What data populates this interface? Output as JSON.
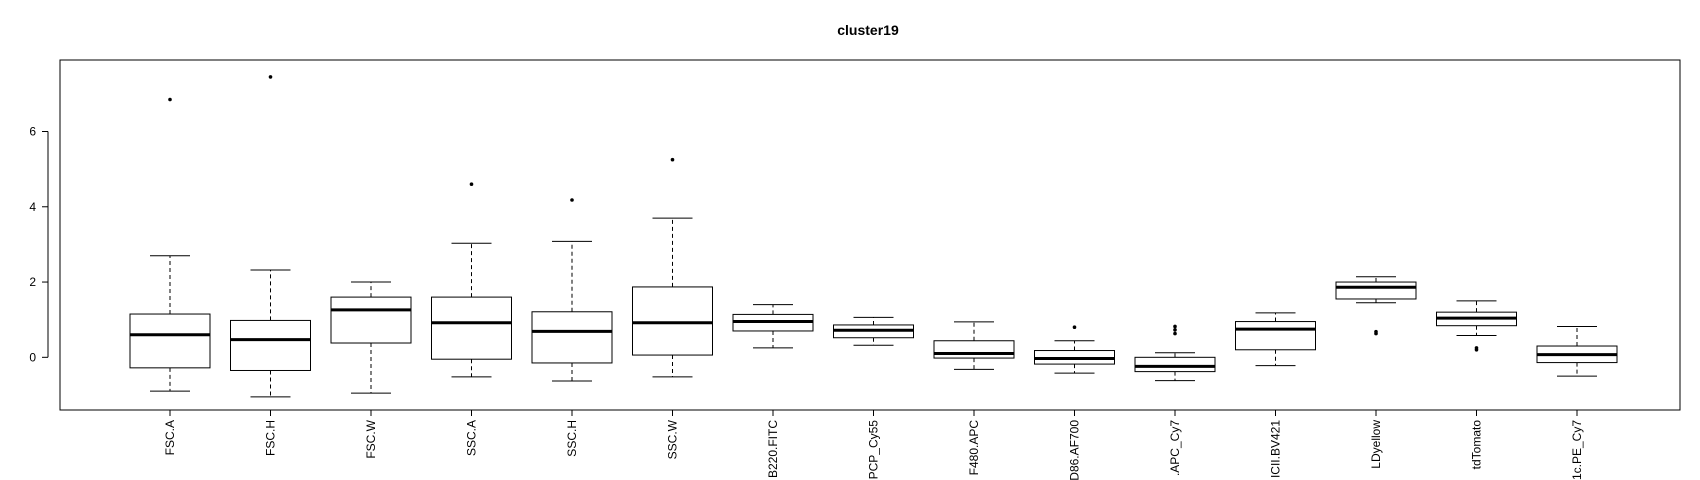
{
  "chart_data": {
    "type": "box",
    "title": "cluster19",
    "xlabel": "",
    "ylabel": "",
    "ylim": [
      -1.4,
      7.9
    ],
    "yticks": [
      0,
      2,
      4,
      6
    ],
    "categories": [
      "FSC.A",
      "FSC.H",
      "FSC.W",
      "SSC.A",
      "SSC.H",
      "SSC.W",
      "B220.FITC",
      "PCP_Cy55",
      "F480.APC",
      "D86.AF700",
      ".APC_Cy7",
      "ICII.BV421",
      "LDyellow",
      "tdTomato",
      "1c.PE_Cy7"
    ],
    "boxes": [
      {
        "label": "FSC.A",
        "whisker_low": -0.9,
        "q1": -0.28,
        "median": 0.6,
        "q3": 1.15,
        "whisker_high": 2.7,
        "outliers": [
          6.85
        ]
      },
      {
        "label": "FSC.H",
        "whisker_low": -1.05,
        "q1": -0.35,
        "median": 0.47,
        "q3": 0.98,
        "whisker_high": 2.32,
        "outliers": [
          7.45
        ]
      },
      {
        "label": "FSC.W",
        "whisker_low": -0.95,
        "q1": 0.38,
        "median": 1.26,
        "q3": 1.6,
        "whisker_high": 2.0,
        "outliers": []
      },
      {
        "label": "SSC.A",
        "whisker_low": -0.52,
        "q1": -0.05,
        "median": 0.92,
        "q3": 1.6,
        "whisker_high": 3.03,
        "outliers": [
          4.6
        ]
      },
      {
        "label": "SSC.H",
        "whisker_low": -0.63,
        "q1": -0.15,
        "median": 0.69,
        "q3": 1.21,
        "whisker_high": 3.08,
        "outliers": [
          4.18
        ]
      },
      {
        "label": "SSC.W",
        "whisker_low": -0.52,
        "q1": 0.06,
        "median": 0.92,
        "q3": 1.87,
        "whisker_high": 3.7,
        "outliers": [
          5.25
        ]
      },
      {
        "label": "B220.FITC",
        "whisker_low": 0.25,
        "q1": 0.7,
        "median": 0.95,
        "q3": 1.14,
        "whisker_high": 1.4,
        "outliers": []
      },
      {
        "label": "PCP_Cy55",
        "whisker_low": 0.32,
        "q1": 0.52,
        "median": 0.72,
        "q3": 0.86,
        "whisker_high": 1.06,
        "outliers": []
      },
      {
        "label": "F480.APC",
        "whisker_low": -0.32,
        "q1": -0.02,
        "median": 0.1,
        "q3": 0.44,
        "whisker_high": 0.94,
        "outliers": []
      },
      {
        "label": "D86.AF700",
        "whisker_low": -0.42,
        "q1": -0.18,
        "median": -0.03,
        "q3": 0.18,
        "whisker_high": 0.44,
        "outliers": [
          0.8
        ]
      },
      {
        "label": ".APC_Cy7",
        "whisker_low": -0.62,
        "q1": -0.38,
        "median": -0.24,
        "q3": 0.0,
        "whisker_high": 0.12,
        "outliers": [
          0.63,
          0.73,
          0.82
        ]
      },
      {
        "label": "ICII.BV421",
        "whisker_low": -0.22,
        "q1": 0.2,
        "median": 0.75,
        "q3": 0.95,
        "whisker_high": 1.18,
        "outliers": []
      },
      {
        "label": "LDyellow",
        "whisker_low": 1.45,
        "q1": 1.55,
        "median": 1.86,
        "q3": 2.0,
        "whisker_high": 2.14,
        "outliers": [
          0.63,
          0.68
        ]
      },
      {
        "label": "tdTomato",
        "whisker_low": 0.58,
        "q1": 0.84,
        "median": 1.04,
        "q3": 1.2,
        "whisker_high": 1.5,
        "outliers": [
          0.2,
          0.25
        ]
      },
      {
        "label": "1c.PE_Cy7",
        "whisker_low": -0.5,
        "q1": -0.14,
        "median": 0.07,
        "q3": 0.3,
        "whisker_high": 0.82,
        "outliers": []
      }
    ]
  }
}
